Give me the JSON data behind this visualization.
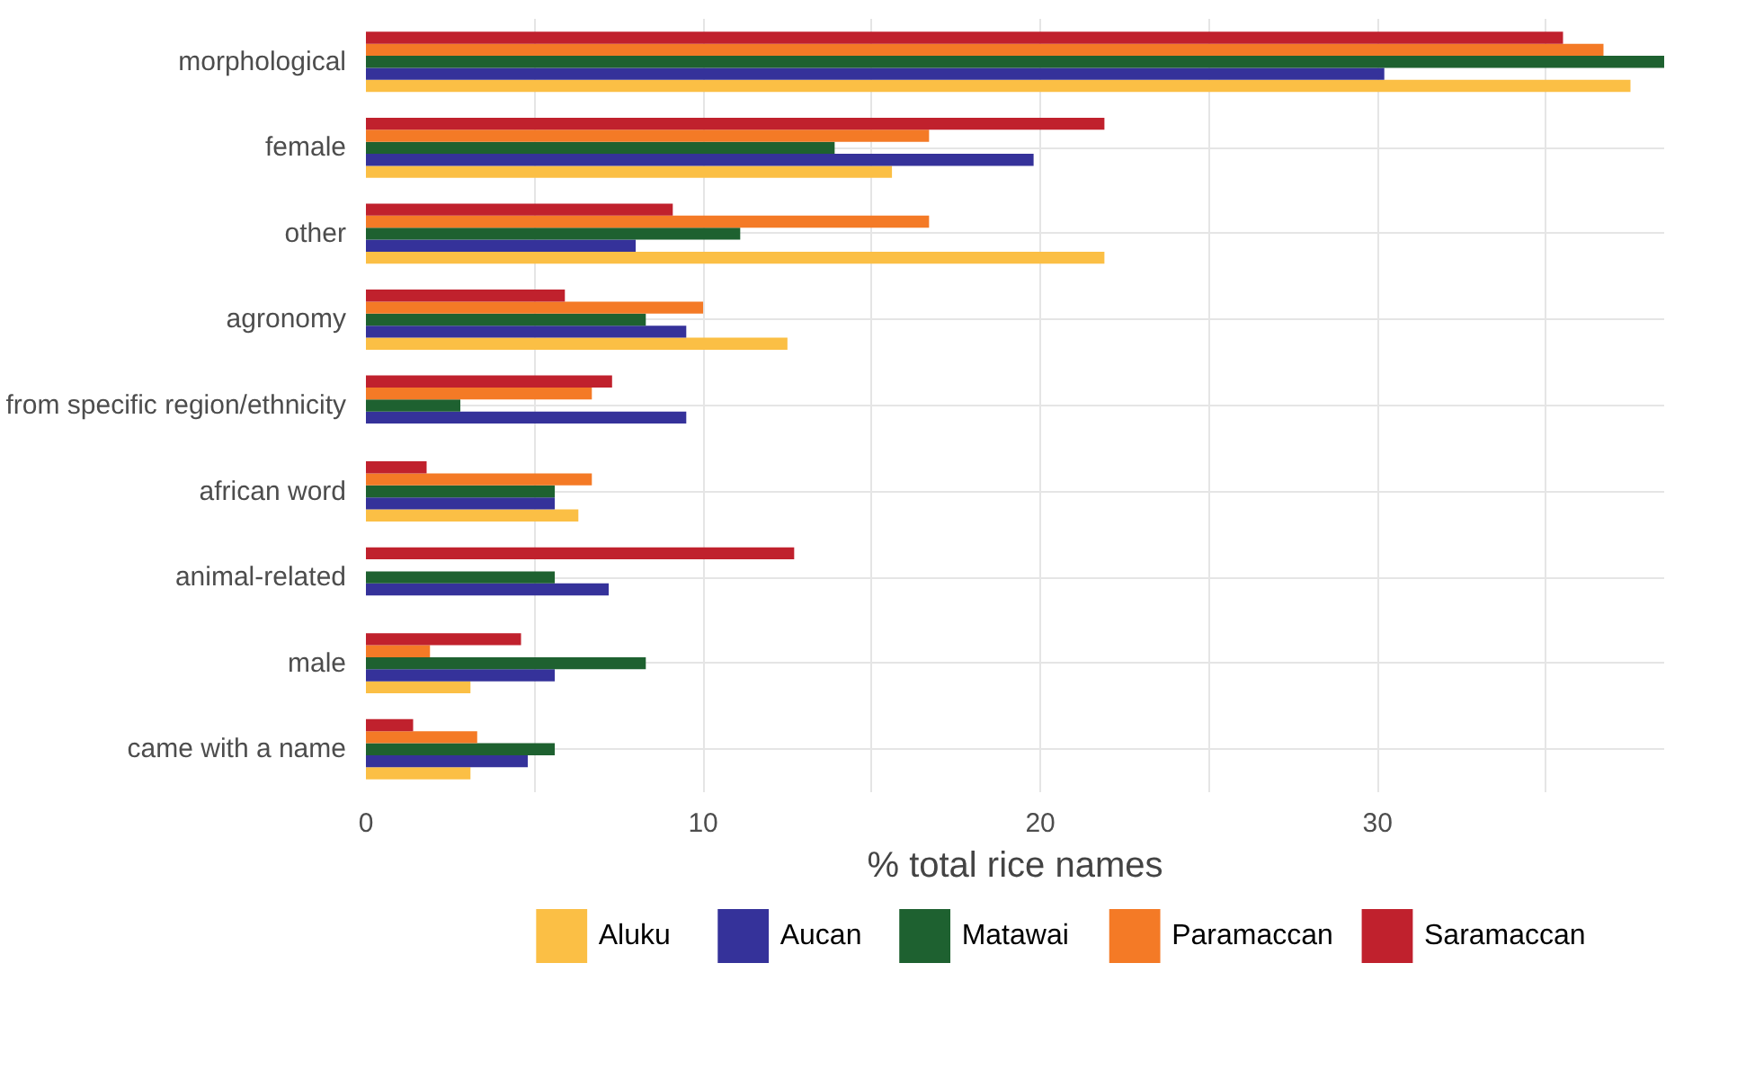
{
  "chart_data": {
    "type": "bar",
    "orientation": "horizontal",
    "xlabel": "% total rice names",
    "categories": [
      "morphological",
      "female",
      "other",
      "agronomy",
      "from specific region/ethnicity",
      "african word",
      "animal-related",
      "male",
      "came with a name"
    ],
    "series": [
      {
        "name": "Aluku",
        "color": "#fbbf45",
        "values": [
          37.5,
          15.6,
          21.9,
          12.5,
          null,
          6.3,
          null,
          3.1,
          3.1
        ]
      },
      {
        "name": "Aucan",
        "color": "#35329a",
        "values": [
          30.2,
          19.8,
          8.0,
          9.5,
          9.5,
          5.6,
          7.2,
          5.6,
          4.8
        ]
      },
      {
        "name": "Matawai",
        "color": "#1e6130",
        "values": [
          38.5,
          13.9,
          11.1,
          8.3,
          2.8,
          5.6,
          5.6,
          8.3,
          5.6
        ]
      },
      {
        "name": "Paramaccan",
        "color": "#f47a26",
        "values": [
          36.7,
          16.7,
          16.7,
          10.0,
          6.7,
          6.7,
          null,
          1.9,
          3.3
        ]
      },
      {
        "name": "Saramaccan",
        "color": "#c0212d",
        "values": [
          35.5,
          21.9,
          9.1,
          5.9,
          7.3,
          1.8,
          12.7,
          4.6,
          1.4
        ]
      }
    ],
    "xlim": [
      0,
      38.5
    ],
    "xticks": [
      0,
      {
        "value": 5,
        "label": null
      },
      10,
      {
        "value": 15,
        "label": null
      },
      20,
      {
        "value": 25,
        "label": null
      },
      30,
      {
        "value": 35,
        "label": null
      }
    ],
    "grid": true,
    "legend": "bottom"
  }
}
